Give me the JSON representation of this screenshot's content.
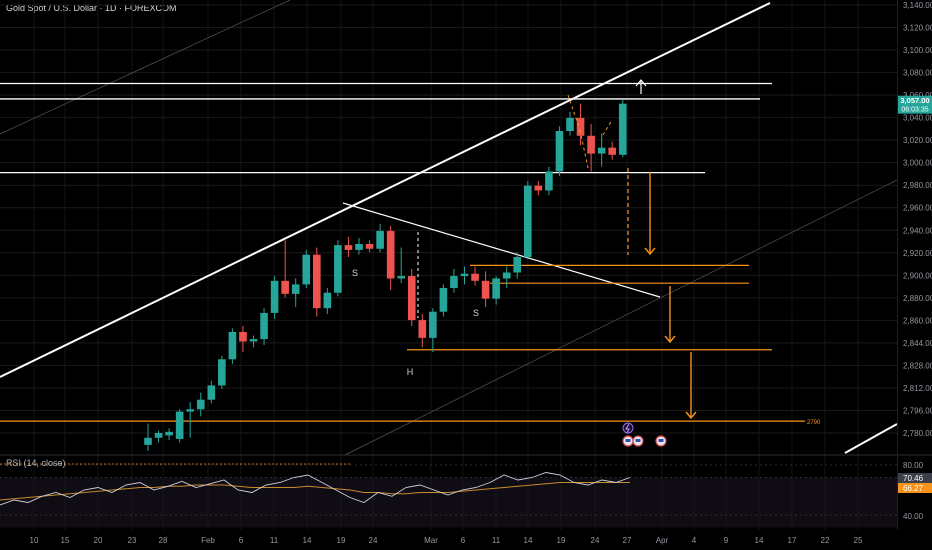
{
  "symbol_title": "Gold Spot / U.S. Dollar · 1D · FOREXCOM",
  "colors": {
    "background": "#000000",
    "up": "#26a69a",
    "down": "#ef5350",
    "level_orange": "#f7931a",
    "trend_white": "#ffffff",
    "rsi_line": "#cfd2da",
    "rsi_ma": "#c88a2c",
    "price_badge": "#26a69a",
    "rsi_badge": "#f7931a"
  },
  "chart_data": [
    {
      "type": "candlestick",
      "price_axis_labels": [
        "3,140.00",
        "3,120.00",
        "3,100.00",
        "3,080.00",
        "3,060.00",
        "3,040.00",
        "3,020.00",
        "3,000.00",
        "2,980.00",
        "2,960.00",
        "2,940.00",
        "2,920.00",
        "2,900.00",
        "2,880.00",
        "2,860.00",
        "2,844.00",
        "2,828.00",
        "2,812.00",
        "2,796.00",
        "2,780.00"
      ],
      "date_axis_labels": [
        "10",
        "15",
        "20",
        "23",
        "28",
        "Feb",
        "6",
        "11",
        "14",
        "19",
        "24",
        "Mar",
        "6",
        "11",
        "14",
        "19",
        "24",
        "27",
        "Apr",
        "4",
        "9",
        "14",
        "17",
        "22",
        "25"
      ],
      "candles": [
        {
          "o": 2770,
          "h": 2788,
          "l": 2765,
          "c": 2776
        },
        {
          "o": 2776,
          "h": 2782,
          "l": 2772,
          "c": 2780
        },
        {
          "o": 2778,
          "h": 2784,
          "l": 2774,
          "c": 2781
        },
        {
          "o": 2775,
          "h": 2800,
          "l": 2772,
          "c": 2798
        },
        {
          "o": 2798,
          "h": 2806,
          "l": 2776,
          "c": 2800
        },
        {
          "o": 2800,
          "h": 2814,
          "l": 2794,
          "c": 2808
        },
        {
          "o": 2808,
          "h": 2824,
          "l": 2805,
          "c": 2820
        },
        {
          "o": 2820,
          "h": 2845,
          "l": 2817,
          "c": 2842
        },
        {
          "o": 2842,
          "h": 2868,
          "l": 2838,
          "c": 2865
        },
        {
          "o": 2865,
          "h": 2870,
          "l": 2848,
          "c": 2857
        },
        {
          "o": 2857,
          "h": 2862,
          "l": 2852,
          "c": 2859
        },
        {
          "o": 2859,
          "h": 2885,
          "l": 2854,
          "c": 2881
        },
        {
          "o": 2881,
          "h": 2912,
          "l": 2876,
          "c": 2908
        },
        {
          "o": 2908,
          "h": 2942,
          "l": 2894,
          "c": 2897
        },
        {
          "o": 2897,
          "h": 2910,
          "l": 2886,
          "c": 2905
        },
        {
          "o": 2905,
          "h": 2934,
          "l": 2902,
          "c": 2930
        },
        {
          "o": 2930,
          "h": 2936,
          "l": 2878,
          "c": 2885
        },
        {
          "o": 2885,
          "h": 2902,
          "l": 2880,
          "c": 2898
        },
        {
          "o": 2898,
          "h": 2942,
          "l": 2895,
          "c": 2938
        },
        {
          "o": 2938,
          "h": 2945,
          "l": 2928,
          "c": 2934
        },
        {
          "o": 2934,
          "h": 2944,
          "l": 2930,
          "c": 2939
        },
        {
          "o": 2939,
          "h": 2942,
          "l": 2932,
          "c": 2935
        },
        {
          "o": 2935,
          "h": 2956,
          "l": 2932,
          "c": 2950
        },
        {
          "o": 2950,
          "h": 2954,
          "l": 2900,
          "c": 2910
        },
        {
          "o": 2910,
          "h": 2936,
          "l": 2906,
          "c": 2912
        },
        {
          "o": 2912,
          "h": 2918,
          "l": 2870,
          "c": 2875
        },
        {
          "o": 2875,
          "h": 2880,
          "l": 2852,
          "c": 2860
        },
        {
          "o": 2860,
          "h": 2885,
          "l": 2848,
          "c": 2882
        },
        {
          "o": 2882,
          "h": 2905,
          "l": 2878,
          "c": 2902
        },
        {
          "o": 2902,
          "h": 2918,
          "l": 2898,
          "c": 2912
        },
        {
          "o": 2912,
          "h": 2920,
          "l": 2905,
          "c": 2914
        },
        {
          "o": 2914,
          "h": 2920,
          "l": 2904,
          "c": 2908
        },
        {
          "o": 2908,
          "h": 2916,
          "l": 2886,
          "c": 2893
        },
        {
          "o": 2893,
          "h": 2912,
          "l": 2888,
          "c": 2910
        },
        {
          "o": 2910,
          "h": 2920,
          "l": 2902,
          "c": 2915
        },
        {
          "o": 2915,
          "h": 2932,
          "l": 2910,
          "c": 2928
        },
        {
          "o": 2928,
          "h": 2992,
          "l": 2926,
          "c": 2988
        },
        {
          "o": 2988,
          "h": 2992,
          "l": 2980,
          "c": 2984
        },
        {
          "o": 2984,
          "h": 3004,
          "l": 2980,
          "c": 3000
        },
        {
          "o": 3000,
          "h": 3038,
          "l": 2996,
          "c": 3034
        },
        {
          "o": 3034,
          "h": 3050,
          "l": 3030,
          "c": 3045
        },
        {
          "o": 3045,
          "h": 3057,
          "l": 3022,
          "c": 3030
        },
        {
          "o": 3030,
          "h": 3040,
          "l": 3000,
          "c": 3015
        },
        {
          "o": 3015,
          "h": 3032,
          "l": 3004,
          "c": 3020
        },
        {
          "o": 3020,
          "h": 3025,
          "l": 3010,
          "c": 3014
        },
        {
          "o": 3014,
          "h": 3060,
          "l": 3012,
          "c": 3057
        }
      ],
      "current_price": {
        "label": "3,057.00",
        "countdown": "06:03:35"
      },
      "horizontal_levels": [
        {
          "price": 3074,
          "color": "white"
        },
        {
          "price": 3061,
          "color": "white"
        },
        {
          "price": 2999,
          "color": "white"
        },
        {
          "price": 2921,
          "color": "orange"
        },
        {
          "price": 2906,
          "color": "orange"
        },
        {
          "price": 2850,
          "color": "orange"
        },
        {
          "price": 2790,
          "color": "orange",
          "label": "2790"
        }
      ],
      "annotations": [
        "S",
        "H",
        "S"
      ]
    },
    {
      "type": "line",
      "title": "RSI (14, close)",
      "axis_labels": [
        "80.00",
        "40.00"
      ],
      "current_values": [
        "70.46",
        "66.27"
      ],
      "rsi": [
        48,
        52,
        50,
        55,
        58,
        54,
        60,
        62,
        58,
        64,
        66,
        60,
        63,
        67,
        62,
        65,
        68,
        60,
        58,
        64,
        66,
        70,
        72,
        66,
        60,
        54,
        50,
        58,
        55,
        62,
        64,
        60,
        56,
        60,
        62,
        66,
        72,
        68,
        70,
        74,
        72,
        66,
        64,
        68,
        66,
        70
      ],
      "rsi_ma": [
        52,
        53,
        54,
        55,
        56,
        57,
        58,
        59,
        60,
        61,
        62,
        62,
        63,
        63,
        64,
        64,
        64,
        63,
        62,
        62,
        62,
        62,
        63,
        62,
        61,
        60,
        58,
        58,
        57,
        57,
        58,
        58,
        58,
        59,
        60,
        61,
        62,
        63,
        64,
        65,
        66,
        66,
        66,
        66,
        66,
        66
      ]
    }
  ]
}
